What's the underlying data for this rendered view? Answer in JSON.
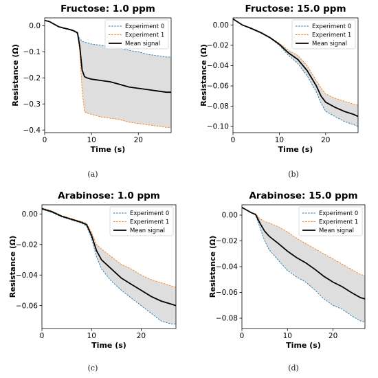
{
  "panels": [
    {
      "caption": "(a)"
    },
    {
      "caption": "(b)"
    },
    {
      "caption": "(c)"
    },
    {
      "caption": "(d)"
    }
  ],
  "colors": {
    "experiment_0": "#1f77b4",
    "experiment_1": "#ff7f0e",
    "mean_signal": "#000000",
    "band_fill": "#c8c8c8"
  },
  "chart_data": [
    {
      "type": "line",
      "title": "Fructose: 1.0 ppm",
      "xlabel": "Time (s)",
      "ylabel": "Resistance (Ω)",
      "xlim": [
        0,
        27
      ],
      "ylim": [
        -0.41,
        0.03
      ],
      "xticks": [
        0,
        10,
        20
      ],
      "yticks": [
        0.0,
        -0.1,
        -0.2,
        -0.3,
        -0.4
      ],
      "ytick_labels": [
        "0.0",
        "−0.1",
        "−0.2",
        "−0.3",
        "−0.4"
      ],
      "legend": "top-right",
      "series": [
        {
          "name": "Experiment 0",
          "style": "dashed",
          "x": [
            0,
            1,
            2,
            3,
            4,
            5,
            6,
            7,
            7.5,
            8,
            9,
            10,
            12,
            14,
            16,
            18,
            20,
            22,
            24,
            26,
            27
          ],
          "y": [
            0.02,
            0.015,
            0.005,
            -0.005,
            -0.01,
            -0.015,
            -0.02,
            -0.03,
            -0.05,
            -0.06,
            -0.065,
            -0.07,
            -0.075,
            -0.08,
            -0.085,
            -0.095,
            -0.1,
            -0.11,
            -0.115,
            -0.12,
            -0.12
          ]
        },
        {
          "name": "Experiment 1",
          "style": "dashed",
          "x": [
            0,
            1,
            2,
            3,
            4,
            5,
            6,
            7,
            7.5,
            8,
            8.5,
            9,
            10,
            12,
            14,
            16,
            18,
            20,
            22,
            24,
            26,
            27
          ],
          "y": [
            0.02,
            0.018,
            0.008,
            -0.002,
            -0.008,
            -0.012,
            -0.016,
            -0.025,
            -0.1,
            -0.25,
            -0.33,
            -0.335,
            -0.34,
            -0.35,
            -0.355,
            -0.36,
            -0.37,
            -0.375,
            -0.38,
            -0.385,
            -0.39,
            -0.39
          ]
        },
        {
          "name": "Mean signal",
          "style": "solid",
          "x": [
            0,
            1,
            2,
            3,
            4,
            5,
            6,
            7,
            7.5,
            8,
            8.5,
            9,
            10,
            12,
            14,
            16,
            18,
            20,
            22,
            24,
            26,
            27
          ],
          "y": [
            0.02,
            0.016,
            0.006,
            -0.004,
            -0.009,
            -0.013,
            -0.018,
            -0.027,
            -0.08,
            -0.17,
            -0.195,
            -0.2,
            -0.205,
            -0.21,
            -0.215,
            -0.225,
            -0.235,
            -0.24,
            -0.245,
            -0.25,
            -0.255,
            -0.255
          ]
        }
      ]
    },
    {
      "type": "line",
      "title": "Fructose: 15.0 ppm",
      "xlabel": "Time (s)",
      "ylabel": "Resistance (Ω)",
      "xlim": [
        0,
        27
      ],
      "ylim": [
        -0.106,
        0.007
      ],
      "xticks": [
        0,
        10,
        20
      ],
      "yticks": [
        0.0,
        -0.02,
        -0.04,
        -0.06,
        -0.08,
        -0.1
      ],
      "ytick_labels": [
        "0.00",
        "−0.02",
        "−0.04",
        "−0.06",
        "−0.08",
        "−0.10"
      ],
      "legend": "top-right",
      "series": [
        {
          "name": "Experiment 0",
          "style": "dashed",
          "x": [
            0,
            1,
            2,
            4,
            6,
            8,
            10,
            12,
            14,
            16,
            18,
            19,
            20,
            22,
            24,
            26,
            27
          ],
          "y": [
            0.006,
            0.003,
            0.0,
            -0.004,
            -0.008,
            -0.013,
            -0.02,
            -0.03,
            -0.038,
            -0.05,
            -0.066,
            -0.077,
            -0.085,
            -0.09,
            -0.095,
            -0.098,
            -0.1
          ]
        },
        {
          "name": "Experiment 1",
          "style": "dashed",
          "x": [
            0,
            1,
            2,
            4,
            6,
            8,
            10,
            12,
            14,
            16,
            18,
            19,
            20,
            22,
            24,
            26,
            27
          ],
          "y": [
            0.006,
            0.003,
            0.0,
            -0.003,
            -0.007,
            -0.012,
            -0.018,
            -0.025,
            -0.03,
            -0.04,
            -0.055,
            -0.062,
            -0.068,
            -0.072,
            -0.075,
            -0.078,
            -0.079
          ]
        },
        {
          "name": "Mean signal",
          "style": "solid",
          "x": [
            0,
            1,
            2,
            4,
            6,
            8,
            10,
            12,
            14,
            16,
            18,
            19,
            20,
            22,
            24,
            26,
            27
          ],
          "y": [
            0.006,
            0.003,
            0.0,
            -0.0035,
            -0.0075,
            -0.0125,
            -0.019,
            -0.0275,
            -0.034,
            -0.045,
            -0.06,
            -0.07,
            -0.076,
            -0.081,
            -0.085,
            -0.088,
            -0.09
          ]
        }
      ]
    },
    {
      "type": "line",
      "title": "Arabinose: 1.0 ppm",
      "xlabel": "Time (s)",
      "ylabel": "Resistance (Ω)",
      "xlim": [
        0,
        27
      ],
      "ylim": [
        -0.075,
        0.006
      ],
      "xticks": [
        0,
        10,
        20
      ],
      "yticks": [
        0.0,
        -0.02,
        -0.04,
        -0.06
      ],
      "ytick_labels": [
        "0.00",
        "−0.02",
        "−0.04",
        "−0.06"
      ],
      "legend": "top-right",
      "series": [
        {
          "name": "Experiment 0",
          "style": "dashed",
          "x": [
            0,
            2,
            4,
            6,
            8,
            9,
            10,
            11,
            12,
            14,
            16,
            18,
            20,
            22,
            24,
            26,
            27
          ],
          "y": [
            0.003,
            0.001,
            -0.002,
            -0.004,
            -0.006,
            -0.008,
            -0.016,
            -0.028,
            -0.036,
            -0.044,
            -0.05,
            -0.055,
            -0.06,
            -0.065,
            -0.07,
            -0.072,
            -0.072
          ]
        },
        {
          "name": "Experiment 1",
          "style": "dashed",
          "x": [
            0,
            2,
            4,
            6,
            8,
            9,
            10,
            11,
            12,
            14,
            16,
            18,
            20,
            22,
            24,
            26,
            27
          ],
          "y": [
            0.004,
            0.002,
            -0.001,
            -0.003,
            -0.005,
            -0.006,
            -0.012,
            -0.02,
            -0.023,
            -0.028,
            -0.033,
            -0.036,
            -0.04,
            -0.043,
            -0.045,
            -0.047,
            -0.048
          ]
        },
        {
          "name": "Mean signal",
          "style": "solid",
          "x": [
            0,
            2,
            4,
            6,
            8,
            9,
            10,
            11,
            12,
            14,
            16,
            18,
            20,
            22,
            24,
            26,
            27
          ],
          "y": [
            0.0035,
            0.0015,
            -0.0015,
            -0.0035,
            -0.0055,
            -0.007,
            -0.014,
            -0.024,
            -0.03,
            -0.036,
            -0.042,
            -0.046,
            -0.05,
            -0.054,
            -0.057,
            -0.059,
            -0.06
          ]
        }
      ]
    },
    {
      "type": "line",
      "title": "Arabinose: 15.0 ppm",
      "xlabel": "Time (s)",
      "ylabel": "Resistance (Ω)",
      "xlim": [
        0,
        27
      ],
      "ylim": [
        -0.088,
        0.008
      ],
      "xticks": [
        0,
        10,
        20
      ],
      "yticks": [
        0.0,
        -0.02,
        -0.04,
        -0.06,
        -0.08
      ],
      "ytick_labels": [
        "0.00",
        "−0.02",
        "−0.04",
        "−0.06",
        "−0.08"
      ],
      "legend": "top-right",
      "series": [
        {
          "name": "Experiment 0",
          "style": "dashed",
          "x": [
            0,
            1,
            2,
            3,
            4,
            5,
            6,
            8,
            10,
            12,
            14,
            16,
            18,
            20,
            22,
            24,
            26,
            27
          ],
          "y": [
            0.006,
            0.004,
            0.002,
            0.0,
            -0.01,
            -0.02,
            -0.027,
            -0.035,
            -0.043,
            -0.048,
            -0.052,
            -0.058,
            -0.065,
            -0.07,
            -0.073,
            -0.078,
            -0.082,
            -0.083
          ]
        },
        {
          "name": "Experiment 1",
          "style": "dashed",
          "x": [
            0,
            1,
            2,
            3,
            4,
            5,
            6,
            8,
            10,
            12,
            14,
            16,
            18,
            20,
            22,
            24,
            26,
            27
          ],
          "y": [
            0.006,
            0.004,
            0.002,
            0.001,
            -0.003,
            -0.005,
            -0.006,
            -0.009,
            -0.013,
            -0.018,
            -0.022,
            -0.026,
            -0.03,
            -0.034,
            -0.038,
            -0.042,
            -0.046,
            -0.047
          ]
        },
        {
          "name": "Mean signal",
          "style": "solid",
          "x": [
            0,
            1,
            2,
            3,
            4,
            5,
            6,
            8,
            10,
            12,
            14,
            16,
            18,
            20,
            22,
            24,
            26,
            27
          ],
          "y": [
            0.006,
            0.004,
            0.002,
            0.0005,
            -0.0065,
            -0.0125,
            -0.0165,
            -0.022,
            -0.028,
            -0.033,
            -0.037,
            -0.042,
            -0.0475,
            -0.052,
            -0.0555,
            -0.06,
            -0.064,
            -0.065
          ]
        }
      ]
    }
  ]
}
